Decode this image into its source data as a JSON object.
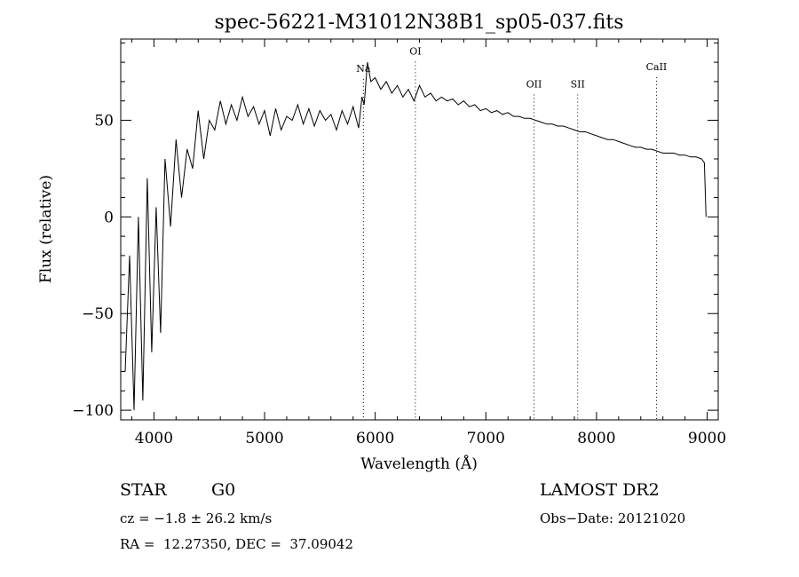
{
  "chart_data": {
    "type": "line",
    "title": "spec-56221-M31012N38B1_sp05-037.fits",
    "xlabel": "Wavelength (Å)",
    "ylabel": "Flux (relative)",
    "xlim": [
      3700,
      9100
    ],
    "ylim": [
      -105,
      92
    ],
    "xticks": [
      4000,
      5000,
      6000,
      7000,
      8000,
      9000
    ],
    "xtick_labels": [
      "4000",
      "5000",
      "6000",
      "7000",
      "8000",
      "9000"
    ],
    "yticks": [
      -100,
      -50,
      0,
      50
    ],
    "ytick_labels": [
      "−100",
      "−50",
      "0",
      "50"
    ],
    "grid": false,
    "line_color": "#000000",
    "series": [
      {
        "x": [
          3740,
          3780,
          3820,
          3860,
          3900,
          3940,
          3980,
          4020,
          4060,
          4100,
          4150,
          4200,
          4250,
          4300,
          4350,
          4400,
          4450,
          4500,
          4550,
          4600,
          4650,
          4700,
          4750,
          4800,
          4850,
          4900,
          4950,
          5000,
          5050,
          5100,
          5150,
          5200,
          5250,
          5300,
          5350,
          5400,
          5450,
          5500,
          5550,
          5600,
          5650,
          5700,
          5750,
          5800,
          5850,
          5880,
          5900,
          5930,
          5960,
          6000,
          6050,
          6100,
          6150,
          6200,
          6250,
          6300,
          6350,
          6400,
          6450,
          6500,
          6550,
          6600,
          6650,
          6700,
          6750,
          6800,
          6850,
          6900,
          6950,
          7000,
          7050,
          7100,
          7150,
          7200,
          7250,
          7300,
          7350,
          7400,
          7450,
          7500,
          7550,
          7600,
          7650,
          7700,
          7750,
          7800,
          7850,
          7900,
          7950,
          8000,
          8050,
          8100,
          8150,
          8200,
          8250,
          8300,
          8350,
          8400,
          8450,
          8500,
          8550,
          8600,
          8650,
          8700,
          8750,
          8800,
          8850,
          8900,
          8950,
          8975,
          8990
        ],
        "y": [
          -80,
          -20,
          -100,
          0,
          -95,
          20,
          -70,
          5,
          -60,
          30,
          -5,
          40,
          10,
          35,
          25,
          55,
          30,
          50,
          45,
          60,
          48,
          58,
          50,
          62,
          52,
          57,
          48,
          55,
          42,
          56,
          45,
          52,
          50,
          58,
          48,
          56,
          47,
          55,
          50,
          53,
          45,
          55,
          48,
          57,
          46,
          62,
          58,
          80,
          70,
          72,
          66,
          70,
          64,
          68,
          62,
          66,
          60,
          68,
          62,
          64,
          60,
          62,
          60,
          61,
          58,
          60,
          57,
          58,
          55,
          56,
          54,
          55,
          53,
          54,
          52,
          52,
          51,
          51,
          50,
          49,
          48,
          48,
          47,
          47,
          46,
          45,
          44,
          44,
          43,
          42,
          41,
          40,
          40,
          39,
          38,
          37,
          36,
          36,
          35,
          35,
          34,
          33,
          33,
          33,
          32,
          32,
          31,
          31,
          30,
          28,
          0
        ]
      }
    ],
    "annotations": [
      {
        "label": "Na",
        "x": 5893,
        "label_y": 75
      },
      {
        "label": "OI",
        "x": 6363,
        "label_y": 84
      },
      {
        "label": "OII",
        "x": 7435,
        "label_y": 67
      },
      {
        "label": "SII",
        "x": 7830,
        "label_y": 67
      },
      {
        "label": "CaII",
        "x": 8542,
        "label_y": 76
      }
    ]
  },
  "footer": {
    "object_type": "STAR",
    "subclass": "G0",
    "survey": "LAMOST DR2",
    "velocity": "cz = −1.8 ± 26.2 km/s",
    "obs_date": "Obs−Date: 20121020",
    "coords": "RA =  12.27350, DEC =  37.09042"
  }
}
